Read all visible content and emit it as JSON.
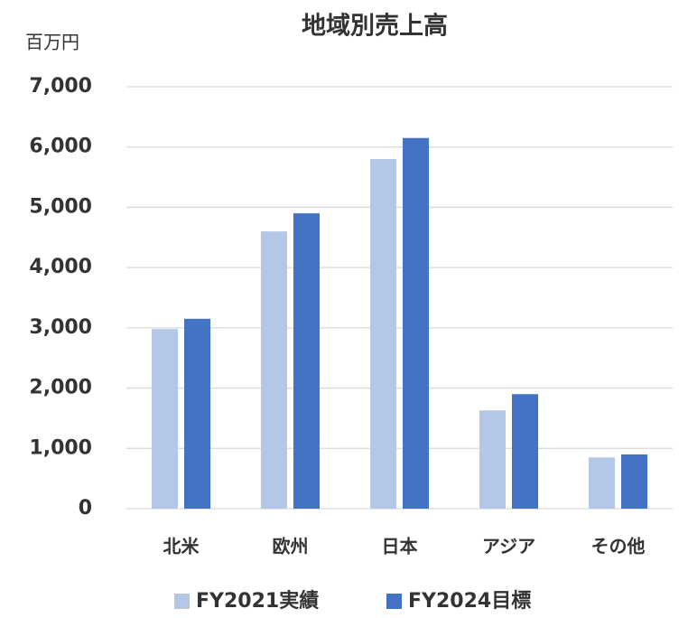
{
  "chart_data": {
    "type": "bar",
    "title": "地域別売上高",
    "y_unit": "百万円",
    "categories": [
      "北米",
      "欧州",
      "日本",
      "アジア",
      "その他"
    ],
    "series": [
      {
        "name": "FY2021実績",
        "color": "#b4c7e7",
        "values": [
          2980,
          4600,
          5800,
          1630,
          850
        ]
      },
      {
        "name": "FY2024目標",
        "color": "#4472c4",
        "values": [
          3150,
          4900,
          6150,
          1900,
          900
        ]
      }
    ],
    "ylim": [
      0,
      7000
    ],
    "yticks": [
      0,
      {
        "value": 1000,
        "label": "1,000"
      },
      {
        "value": 2000,
        "label": "2,000"
      },
      {
        "value": 3000,
        "label": "3,000"
      },
      {
        "value": 4000,
        "label": "4,000"
      },
      {
        "value": 5000,
        "label": "5,000"
      },
      {
        "value": 6000,
        "label": "6,000"
      },
      {
        "value": 7000,
        "label": "7,000"
      }
    ],
    "grid": true
  }
}
